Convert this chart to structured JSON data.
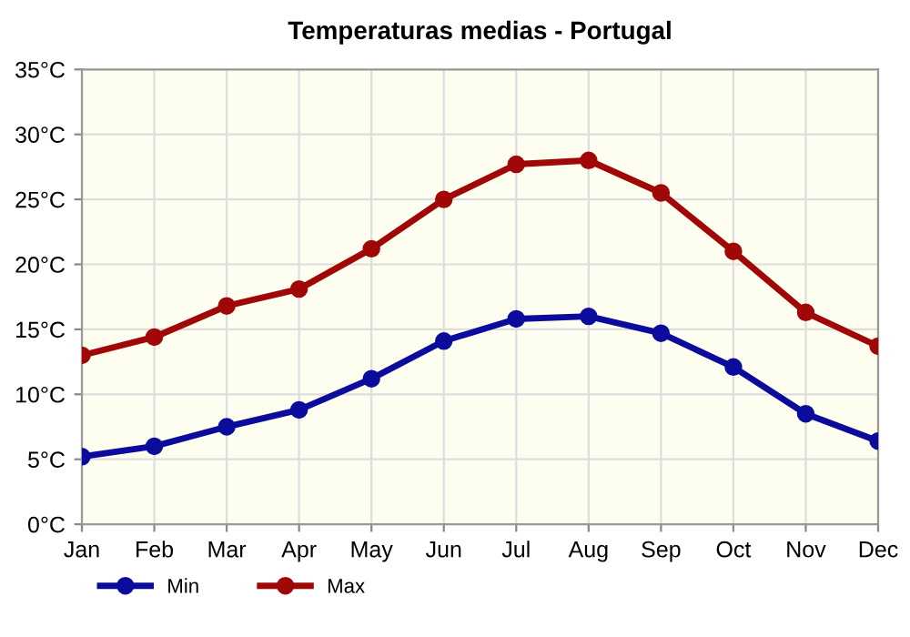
{
  "chart_data": {
    "type": "line",
    "title": "Temperaturas medias - Portugal",
    "categories": [
      "Jan",
      "Feb",
      "Mar",
      "Apr",
      "May",
      "Jun",
      "Jul",
      "Aug",
      "Sep",
      "Oct",
      "Nov",
      "Dec"
    ],
    "series": [
      {
        "name": "Min",
        "color": "#0c0c9c",
        "values": [
          5.2,
          6.0,
          7.5,
          8.8,
          11.2,
          14.1,
          15.8,
          16.0,
          14.7,
          12.1,
          8.5,
          6.4
        ]
      },
      {
        "name": "Max",
        "color": "#a00808",
        "values": [
          13.0,
          14.4,
          16.8,
          18.1,
          21.2,
          25.0,
          27.7,
          28.0,
          25.5,
          21.0,
          16.3,
          13.7
        ]
      }
    ],
    "ylim": [
      0,
      35
    ],
    "yticks": [
      {
        "value": 0,
        "label": "0°C"
      },
      {
        "value": 5,
        "label": "5°C"
      },
      {
        "value": 10,
        "label": "10°C"
      },
      {
        "value": 15,
        "label": "15°C"
      },
      {
        "value": 20,
        "label": "20°C"
      },
      {
        "value": 25,
        "label": "25°C"
      },
      {
        "value": 30,
        "label": "30°C"
      },
      {
        "value": 35,
        "label": "35°C"
      }
    ],
    "grid": true,
    "legend": "bottom left",
    "marker": "circle",
    "line_style": "solid"
  }
}
